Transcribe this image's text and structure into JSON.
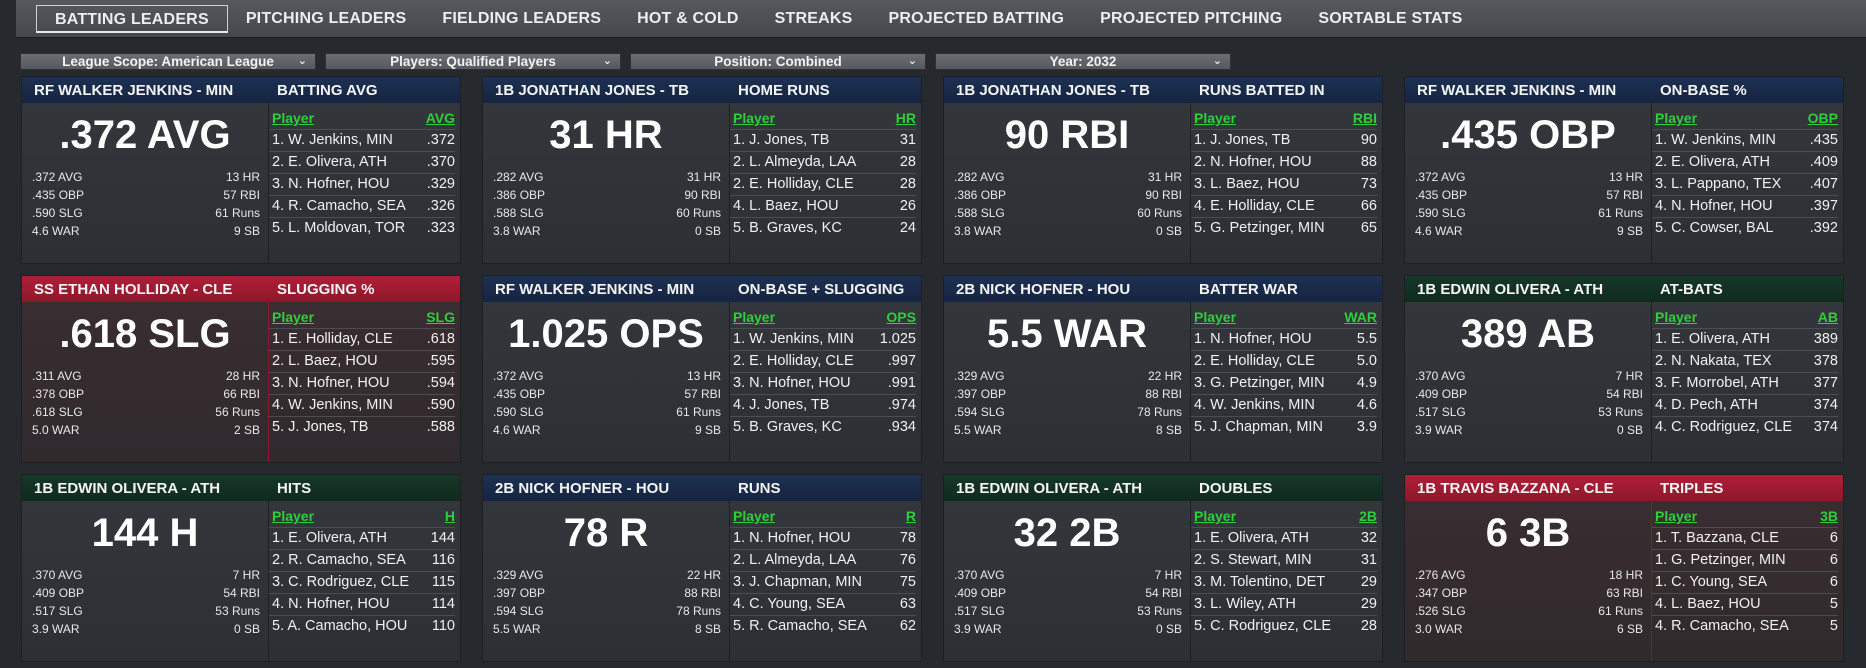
{
  "tabs": [
    "BATTING LEADERS",
    "PITCHING LEADERS",
    "FIELDING LEADERS",
    "HOT & COLD",
    "STREAKS",
    "PROJECTED BATTING",
    "PROJECTED PITCHING",
    "SORTABLE STATS"
  ],
  "filters": [
    "League Scope: American League",
    "Players: Qualified Players",
    "Position: Combined",
    "Year: 2032"
  ],
  "colors": {
    "navy": "#1d3153",
    "green": "#153828",
    "red": "#b01e38",
    "link_green": "#2fce3b"
  },
  "cards": [
    {
      "theme": "navy",
      "player": "RF WALKER JENKINS - MIN",
      "stat": "BATTING AVG",
      "big": ".372 AVG",
      "lines": [
        [
          ".372 AVG",
          "13 HR"
        ],
        [
          ".435 OBP",
          "57 RBI"
        ],
        [
          ".590 SLG",
          "61 Runs"
        ],
        [
          "4.6 WAR",
          "9 SB"
        ]
      ],
      "col": "AVG",
      "rows": [
        [
          "1. W. Jenkins, MIN",
          ".372"
        ],
        [
          "2. E. Olivera, ATH",
          ".370"
        ],
        [
          "3. N. Hofner, HOU",
          ".329"
        ],
        [
          "4. R. Camacho, SEA",
          ".326"
        ],
        [
          "5. L. Moldovan, TOR",
          ".323"
        ]
      ]
    },
    {
      "theme": "navy",
      "player": "1B JONATHAN JONES - TB",
      "stat": "HOME RUNS",
      "big": "31 HR",
      "lines": [
        [
          ".282 AVG",
          "31 HR"
        ],
        [
          ".386 OBP",
          "90 RBI"
        ],
        [
          ".588 SLG",
          "60 Runs"
        ],
        [
          "3.8 WAR",
          "0 SB"
        ]
      ],
      "col": "HR",
      "rows": [
        [
          "1. J. Jones, TB",
          "31"
        ],
        [
          "2. L. Almeyda, LAA",
          "28"
        ],
        [
          "2. E. Holliday, CLE",
          "28"
        ],
        [
          "4. L. Baez, HOU",
          "26"
        ],
        [
          "5. B. Graves, KC",
          "24"
        ]
      ]
    },
    {
      "theme": "navy",
      "player": "1B JONATHAN JONES - TB",
      "stat": "RUNS BATTED IN",
      "big": "90 RBI",
      "lines": [
        [
          ".282 AVG",
          "31 HR"
        ],
        [
          ".386 OBP",
          "90 RBI"
        ],
        [
          ".588 SLG",
          "60 Runs"
        ],
        [
          "3.8 WAR",
          "0 SB"
        ]
      ],
      "col": "RBI",
      "rows": [
        [
          "1. J. Jones, TB",
          "90"
        ],
        [
          "2. N. Hofner, HOU",
          "88"
        ],
        [
          "3. L. Baez, HOU",
          "73"
        ],
        [
          "4. E. Holliday, CLE",
          "66"
        ],
        [
          "5. G. Petzinger, MIN",
          "65"
        ]
      ]
    },
    {
      "theme": "navy",
      "player": "RF WALKER JENKINS - MIN",
      "stat": "ON-BASE %",
      "big": ".435 OBP",
      "lines": [
        [
          ".372 AVG",
          "13 HR"
        ],
        [
          ".435 OBP",
          "57 RBI"
        ],
        [
          ".590 SLG",
          "61 Runs"
        ],
        [
          "4.6 WAR",
          "9 SB"
        ]
      ],
      "col": "OBP",
      "rows": [
        [
          "1. W. Jenkins, MIN",
          ".435"
        ],
        [
          "2. E. Olivera, ATH",
          ".409"
        ],
        [
          "3. L. Pappano, TEX",
          ".407"
        ],
        [
          "4. N. Hofner, HOU",
          ".397"
        ],
        [
          "5. C. Cowser, BAL",
          ".392"
        ]
      ]
    },
    {
      "theme": "red",
      "player": "SS ETHAN HOLLIDAY - CLE",
      "stat": "SLUGGING %",
      "big": ".618 SLG",
      "lines": [
        [
          ".311 AVG",
          "28 HR"
        ],
        [
          ".378 OBP",
          "66 RBI"
        ],
        [
          ".618 SLG",
          "56 Runs"
        ],
        [
          "5.0 WAR",
          "2 SB"
        ]
      ],
      "col": "SLG",
      "rows": [
        [
          "1. E. Holliday, CLE",
          ".618"
        ],
        [
          "2. L. Baez, HOU",
          ".595"
        ],
        [
          "3. N. Hofner, HOU",
          ".594"
        ],
        [
          "4. W. Jenkins, MIN",
          ".590"
        ],
        [
          "5. J. Jones, TB",
          ".588"
        ]
      ]
    },
    {
      "theme": "navy",
      "player": "RF WALKER JENKINS - MIN",
      "stat": "ON-BASE + SLUGGING",
      "big": "1.025 OPS",
      "lines": [
        [
          ".372 AVG",
          "13 HR"
        ],
        [
          ".435 OBP",
          "57 RBI"
        ],
        [
          ".590 SLG",
          "61 Runs"
        ],
        [
          "4.6 WAR",
          "9 SB"
        ]
      ],
      "col": "OPS",
      "rows": [
        [
          "1. W. Jenkins, MIN",
          "1.025"
        ],
        [
          "2. E. Holliday, CLE",
          ".997"
        ],
        [
          "3. N. Hofner, HOU",
          ".991"
        ],
        [
          "4. J. Jones, TB",
          ".974"
        ],
        [
          "5. B. Graves, KC",
          ".934"
        ]
      ]
    },
    {
      "theme": "navy",
      "player": "2B NICK HOFNER - HOU",
      "stat": "BATTER WAR",
      "big": "5.5 WAR",
      "lines": [
        [
          ".329 AVG",
          "22 HR"
        ],
        [
          ".397 OBP",
          "88 RBI"
        ],
        [
          ".594 SLG",
          "78 Runs"
        ],
        [
          "5.5 WAR",
          "8 SB"
        ]
      ],
      "col": "WAR",
      "rows": [
        [
          "1. N. Hofner, HOU",
          "5.5"
        ],
        [
          "2. E. Holliday, CLE",
          "5.0"
        ],
        [
          "3. G. Petzinger, MIN",
          "4.9"
        ],
        [
          "4. W. Jenkins, MIN",
          "4.6"
        ],
        [
          "5. J. Chapman, MIN",
          "3.9"
        ]
      ]
    },
    {
      "theme": "green",
      "player": "1B EDWIN OLIVERA - ATH",
      "stat": "AT-BATS",
      "big": "389 AB",
      "lines": [
        [
          ".370 AVG",
          "7 HR"
        ],
        [
          ".409 OBP",
          "54 RBI"
        ],
        [
          ".517 SLG",
          "53 Runs"
        ],
        [
          "3.9 WAR",
          "0 SB"
        ]
      ],
      "col": "AB",
      "rows": [
        [
          "1. E. Olivera, ATH",
          "389"
        ],
        [
          "2. N. Nakata, TEX",
          "378"
        ],
        [
          "3. F. Morrobel, ATH",
          "377"
        ],
        [
          "4. D. Pech, ATH",
          "374"
        ],
        [
          "4. C. Rodriguez, CLE",
          "374"
        ]
      ]
    },
    {
      "theme": "green",
      "player": "1B EDWIN OLIVERA - ATH",
      "stat": "HITS",
      "big": "144 H",
      "lines": [
        [
          ".370 AVG",
          "7 HR"
        ],
        [
          ".409 OBP",
          "54 RBI"
        ],
        [
          ".517 SLG",
          "53 Runs"
        ],
        [
          "3.9 WAR",
          "0 SB"
        ]
      ],
      "col": "H",
      "rows": [
        [
          "1. E. Olivera, ATH",
          "144"
        ],
        [
          "2. R. Camacho, SEA",
          "116"
        ],
        [
          "3. C. Rodriguez, CLE",
          "115"
        ],
        [
          "4. N. Hofner, HOU",
          "114"
        ],
        [
          "5. A. Camacho, HOU",
          "110"
        ]
      ]
    },
    {
      "theme": "navy",
      "player": "2B NICK HOFNER - HOU",
      "stat": "RUNS",
      "big": "78 R",
      "lines": [
        [
          ".329 AVG",
          "22 HR"
        ],
        [
          ".397 OBP",
          "88 RBI"
        ],
        [
          ".594 SLG",
          "78 Runs"
        ],
        [
          "5.5 WAR",
          "8 SB"
        ]
      ],
      "col": "R",
      "rows": [
        [
          "1. N. Hofner, HOU",
          "78"
        ],
        [
          "2. L. Almeyda, LAA",
          "76"
        ],
        [
          "3. J. Chapman, MIN",
          "75"
        ],
        [
          "4. C. Young, SEA",
          "63"
        ],
        [
          "5. R. Camacho, SEA",
          "62"
        ]
      ]
    },
    {
      "theme": "green",
      "player": "1B EDWIN OLIVERA - ATH",
      "stat": "DOUBLES",
      "big": "32 2B",
      "lines": [
        [
          ".370 AVG",
          "7 HR"
        ],
        [
          ".409 OBP",
          "54 RBI"
        ],
        [
          ".517 SLG",
          "53 Runs"
        ],
        [
          "3.9 WAR",
          "0 SB"
        ]
      ],
      "col": "2B",
      "rows": [
        [
          "1. E. Olivera, ATH",
          "32"
        ],
        [
          "2. S. Stewart, MIN",
          "31"
        ],
        [
          "3. M. Tolentino, DET",
          "29"
        ],
        [
          "3. L. Wiley, ATH",
          "29"
        ],
        [
          "5. C. Rodriguez, CLE",
          "28"
        ]
      ]
    },
    {
      "theme": "red",
      "player": "1B TRAVIS BAZZANA - CLE",
      "stat": "TRIPLES",
      "big": "6 3B",
      "lines": [
        [
          ".276 AVG",
          "18 HR"
        ],
        [
          ".347 OBP",
          "63 RBI"
        ],
        [
          ".526 SLG",
          "61 Runs"
        ],
        [
          "3.0 WAR",
          "6 SB"
        ]
      ],
      "col": "3B",
      "rows": [
        [
          "1. T. Bazzana, CLE",
          "6"
        ],
        [
          "1. G. Petzinger, MIN",
          "6"
        ],
        [
          "1. C. Young, SEA",
          "6"
        ],
        [
          "4. L. Baez, HOU",
          "5"
        ],
        [
          "4. R. Camacho, SEA",
          "5"
        ]
      ]
    }
  ],
  "labels": {
    "player_col": "Player"
  }
}
